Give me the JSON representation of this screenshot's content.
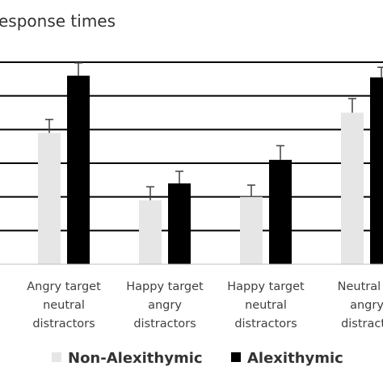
{
  "chart_data": {
    "type": "bar",
    "title": "esponse times",
    "xlabel": "",
    "ylabel": "",
    "ylim": [
      0,
      6
    ],
    "grid": true,
    "legend_placement": "bottom",
    "categories": [
      [
        "Angry target",
        "neutral",
        "distractors"
      ],
      [
        "Happy target",
        "angry",
        "distractors"
      ],
      [
        "Happy target",
        "neutral",
        "distractors"
      ],
      [
        "Neutral ta",
        "angry",
        "distracto"
      ]
    ],
    "series": [
      {
        "name": "Non-Alexithymic",
        "color": "#e6e6e6",
        "values": [
          3.9,
          1.9,
          2.0,
          4.5
        ],
        "errors": [
          0.4,
          0.4,
          0.35,
          0.42
        ]
      },
      {
        "name": "Alexithymic",
        "color": "#000000",
        "values": [
          5.6,
          2.4,
          3.1,
          5.55
        ],
        "errors": [
          0.38,
          0.36,
          0.42,
          0.3
        ]
      }
    ]
  }
}
